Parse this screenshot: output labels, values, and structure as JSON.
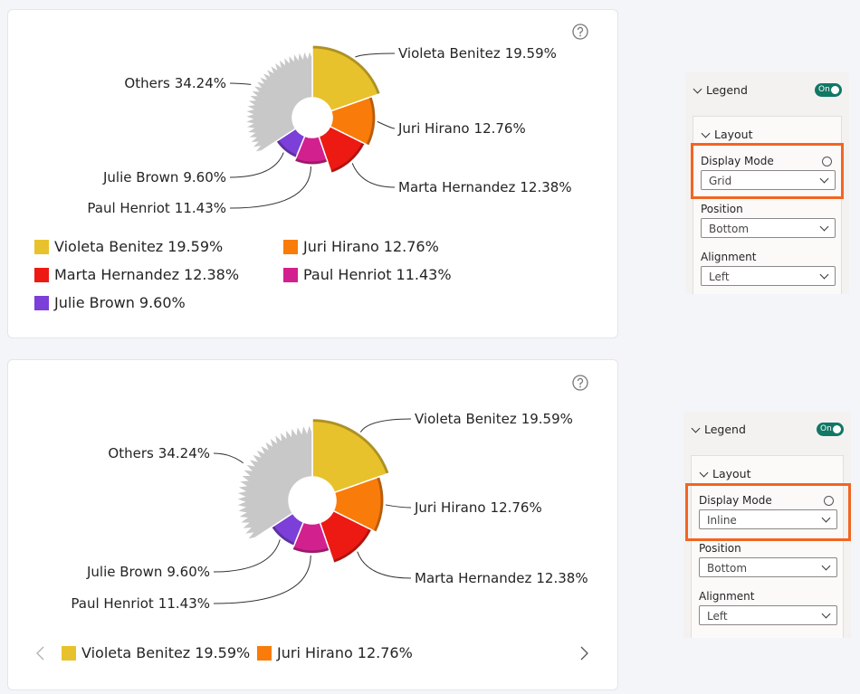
{
  "chart_data": [
    {
      "type": "pie",
      "categories": [
        "Violeta Benitez",
        "Juri Hirano",
        "Marta Hernandez",
        "Paul Henriot",
        "Julie Brown",
        "Others"
      ],
      "values": [
        19.59,
        12.76,
        12.38,
        11.43,
        9.6,
        34.24
      ],
      "value_labels": [
        "19.59%",
        "12.76%",
        "12.38%",
        "11.43%",
        "9.60%",
        "34.24%"
      ],
      "colors": [
        "#e8c22c",
        "#f97b0a",
        "#ec1a12",
        "#d3208f",
        "#7c3fd8",
        "#c8c8c8"
      ]
    },
    {
      "type": "pie",
      "categories": [
        "Violeta Benitez",
        "Juri Hirano",
        "Marta Hernandez",
        "Paul Henriot",
        "Julie Brown",
        "Others"
      ],
      "values": [
        19.59,
        12.76,
        12.38,
        11.43,
        9.6,
        34.24
      ],
      "value_labels": [
        "19.59%",
        "12.76%",
        "12.38%",
        "11.43%",
        "9.60%",
        "34.24%"
      ],
      "colors": [
        "#e8c22c",
        "#f97b0a",
        "#ec1a12",
        "#d3208f",
        "#7c3fd8",
        "#c8c8c8"
      ]
    }
  ],
  "panels": [
    {
      "title": "Legend",
      "toggle": "On",
      "section": "Layout",
      "fields": [
        {
          "label": "Display Mode",
          "value": "Grid"
        },
        {
          "label": "Position",
          "value": "Bottom"
        },
        {
          "label": "Alignment",
          "value": "Left"
        }
      ]
    },
    {
      "title": "Legend",
      "toggle": "On",
      "section": "Layout",
      "fields": [
        {
          "label": "Display Mode",
          "value": "Inline"
        },
        {
          "label": "Position",
          "value": "Bottom"
        },
        {
          "label": "Alignment",
          "value": "Left"
        }
      ]
    }
  ]
}
